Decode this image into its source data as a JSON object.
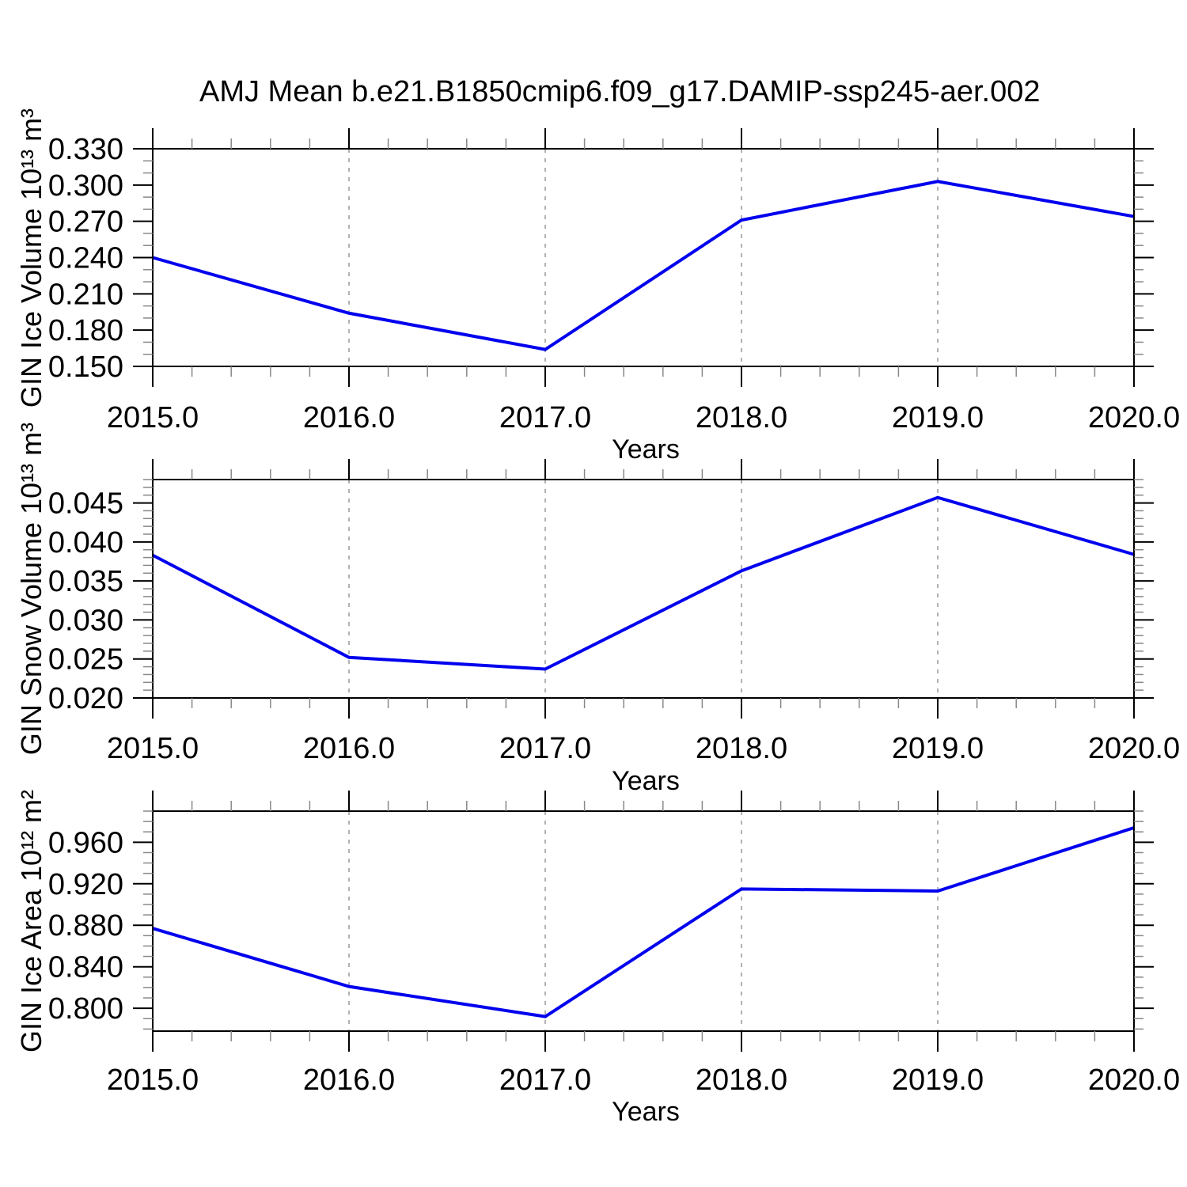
{
  "title": "AMJ Mean b.e21.B1850cmip6.f09_g17.DAMIP-ssp245-aer.002",
  "colors": {
    "line": "#0000ee",
    "grid": "#999999",
    "minor_tick": "#888888",
    "frame": "#000000",
    "background": "#ffffff"
  },
  "chart_data": [
    {
      "type": "line",
      "panel": "gin-ice-volume",
      "x": [
        2015,
        2016,
        2017,
        2018,
        2019,
        2020
      ],
      "values": [
        0.24,
        0.194,
        0.164,
        0.271,
        0.303,
        0.274
      ],
      "xlabel": "Years",
      "ylabel": "GIN Ice Volume 10¹³ m³",
      "xlim": [
        2015,
        2020
      ],
      "ylim": [
        0.15,
        0.33
      ],
      "xticks": [
        2015,
        2016,
        2017,
        2018,
        2019,
        2020
      ],
      "xtick_labels": [
        "2015.0",
        "2016.0",
        "2017.0",
        "2018.0",
        "2019.0",
        "2020.0"
      ],
      "x_minor_step": 0.2,
      "yticks": [
        0.15,
        0.18,
        0.21,
        0.24,
        0.27,
        0.3,
        0.33
      ],
      "ytick_labels": [
        "0.150",
        "0.180",
        "0.210",
        "0.240",
        "0.270",
        "0.300",
        "0.330"
      ],
      "y_minor_step": 0.01,
      "grid_x": [
        2016,
        2017,
        2018,
        2019
      ],
      "grid_style": "dashed-vertical",
      "legend": "none"
    },
    {
      "type": "line",
      "panel": "gin-snow-volume",
      "x": [
        2015,
        2016,
        2017,
        2018,
        2019,
        2020
      ],
      "values": [
        0.0383,
        0.0252,
        0.0237,
        0.0363,
        0.0457,
        0.0384
      ],
      "xlabel": "Years",
      "ylabel": "GIN Snow Volume 10¹³ m³",
      "xlim": [
        2015,
        2020
      ],
      "ylim": [
        0.02,
        0.048
      ],
      "xticks": [
        2015,
        2016,
        2017,
        2018,
        2019,
        2020
      ],
      "xtick_labels": [
        "2015.0",
        "2016.0",
        "2017.0",
        "2018.0",
        "2019.0",
        "2020.0"
      ],
      "x_minor_step": 0.2,
      "yticks": [
        0.02,
        0.025,
        0.03,
        0.035,
        0.04,
        0.045
      ],
      "ytick_labels": [
        "0.020",
        "0.025",
        "0.030",
        "0.035",
        "0.040",
        "0.045"
      ],
      "y_minor_step": 0.001,
      "grid_x": [
        2016,
        2017,
        2018,
        2019
      ],
      "grid_style": "dashed-vertical",
      "legend": "none"
    },
    {
      "type": "line",
      "panel": "gin-ice-area",
      "x": [
        2015,
        2016,
        2017,
        2018,
        2019,
        2020
      ],
      "values": [
        0.877,
        0.821,
        0.792,
        0.915,
        0.913,
        0.974
      ],
      "xlabel": "Years",
      "ylabel": "GIN Ice Area 10¹² m²",
      "xlim": [
        2015,
        2020
      ],
      "ylim": [
        0.778,
        0.99
      ],
      "xticks": [
        2015,
        2016,
        2017,
        2018,
        2019,
        2020
      ],
      "xtick_labels": [
        "2015.0",
        "2016.0",
        "2017.0",
        "2018.0",
        "2019.0",
        "2020.0"
      ],
      "x_minor_step": 0.2,
      "yticks": [
        0.8,
        0.84,
        0.88,
        0.92,
        0.96
      ],
      "ytick_labels": [
        "0.800",
        "0.840",
        "0.880",
        "0.920",
        "0.960"
      ],
      "y_minor_step": 0.01,
      "grid_x": [
        2016,
        2017,
        2018,
        2019
      ],
      "grid_style": "dashed-vertical",
      "legend": "none"
    }
  ]
}
